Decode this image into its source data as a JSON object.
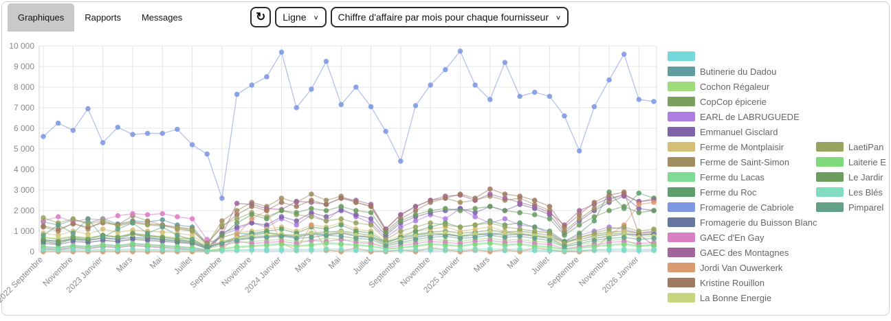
{
  "tabs": [
    {
      "label": "Graphiques",
      "active": true
    },
    {
      "label": "Rapports",
      "active": false
    },
    {
      "label": "Messages",
      "active": false
    }
  ],
  "toolbar": {
    "refresh_icon": "↻",
    "chart_type_select": {
      "value": "Ligne"
    },
    "dataset_select": {
      "value": "Chiffre d'affaire par mois pour chaque fournisseur"
    }
  },
  "chart_data": {
    "type": "line",
    "title": "Chiffre d'affaire par mois pour chaque fournisseur",
    "n_points": 42,
    "x_tick_every": 2,
    "x_tick_labels": [
      "2022 Septembre",
      "Novembre",
      "2023 Janvier",
      "Mars",
      "Mai",
      "Juillet",
      "Septembre",
      "Novembre",
      "2024 Janvier",
      "Mars",
      "Mai",
      "Juillet",
      "Septembre",
      "Novembre",
      "2025 Janvier",
      "Mars",
      "Mai",
      "Juillet",
      "Septembre",
      "Novembre",
      "2026 Janvier"
    ],
    "ylim": [
      0,
      10000
    ],
    "y_tick_step": 1000,
    "y_tick_labels": [
      "0",
      "1 000",
      "2 000",
      "3 000",
      "4 000",
      "5 000",
      "6 000",
      "7 000",
      "8 000",
      "9 000",
      "10 000"
    ],
    "grid": true,
    "legend_position": "right",
    "series": [
      {
        "name": "",
        "color": "#76d7dd",
        "legend_column": 1,
        "values": [
          60,
          50,
          70,
          40,
          60,
          50,
          60,
          70,
          50,
          60,
          40,
          30,
          50,
          60,
          70,
          50,
          60,
          50,
          70,
          60,
          50,
          60,
          40,
          30,
          60,
          50,
          70,
          60,
          50,
          60,
          70,
          50,
          60,
          50,
          40,
          30,
          50,
          60,
          70,
          60,
          50,
          60
        ]
      },
      {
        "name": "Butinerie du Dadou",
        "color": "#5f9da0",
        "legend_column": 1,
        "values": [
          1450,
          1300,
          1550,
          1400,
          1600,
          1350,
          1500,
          1450,
          1550,
          1300,
          1200,
          400,
          700,
          900,
          850,
          950,
          800,
          750,
          900,
          850,
          950,
          800,
          700,
          500,
          650,
          800,
          900,
          850,
          750,
          900,
          800,
          950,
          850,
          800,
          700,
          500,
          600,
          750,
          850,
          900,
          800,
          850
        ]
      },
      {
        "name": "Cochon Régaleur",
        "color": "#9fdb7d",
        "legend_column": 1,
        "values": [
          500,
          400,
          600,
          450,
          550,
          500,
          650,
          600,
          550,
          450,
          400,
          150,
          300,
          450,
          500,
          550,
          600,
          500,
          550,
          650,
          600,
          550,
          450,
          250,
          400,
          500,
          600,
          550,
          500,
          600,
          650,
          550,
          600,
          500,
          450,
          250,
          350,
          450,
          550,
          600,
          300,
          350
        ]
      },
      {
        "name": "CopCop épicerie",
        "color": "#7ba05e",
        "legend_column": 1,
        "values": [
          700,
          600,
          750,
          650,
          800,
          700,
          850,
          750,
          700,
          650,
          600,
          200,
          500,
          700,
          800,
          900,
          850,
          800,
          900,
          950,
          1000,
          900,
          800,
          400,
          700,
          850,
          950,
          1000,
          900,
          950,
          1050,
          950,
          1000,
          900,
          800,
          450,
          700,
          850,
          950,
          1000,
          900,
          950
        ]
      },
      {
        "name": "EARL de LABRUGUEDE",
        "color": "#ae7de0",
        "legend_column": 1,
        "values": [
          250,
          200,
          300,
          250,
          350,
          300,
          400,
          350,
          300,
          250,
          200,
          100,
          800,
          1100,
          1400,
          1200,
          1600,
          1300,
          1800,
          1500,
          2100,
          1700,
          1400,
          700,
          1200,
          1500,
          1800,
          1600,
          2100,
          1700,
          1400,
          1600,
          1300,
          1200,
          900,
          500,
          800,
          1000,
          1200,
          1100,
          900,
          1000
        ]
      },
      {
        "name": "Emmanuel Gisclard",
        "color": "#7f64aa",
        "legend_column": 1,
        "values": [
          400,
          350,
          500,
          450,
          550,
          500,
          600,
          550,
          500,
          450,
          400,
          150,
          900,
          1200,
          1400,
          1300,
          1700,
          1500,
          1900,
          1700,
          2000,
          1800,
          1600,
          800,
          1400,
          1700,
          1900,
          2000,
          2100,
          1900,
          2200,
          2000,
          2300,
          2100,
          1800,
          900,
          1500,
          2000,
          2400,
          2700,
          2100,
          2000
        ]
      },
      {
        "name": "Ferme de Montplaisir",
        "color": "#d5bf78",
        "legend_column": 1,
        "values": [
          900,
          800,
          1000,
          850,
          1100,
          950,
          1050,
          1000,
          950,
          900,
          800,
          300,
          700,
          900,
          1000,
          1100,
          1200,
          1000,
          1300,
          1200,
          1400,
          1100,
          1000,
          500,
          800,
          1000,
          1100,
          1200,
          1000,
          1100,
          1200,
          1000,
          900,
          800,
          700,
          400,
          600,
          800,
          900,
          1000,
          850,
          900
        ]
      },
      {
        "name": "Ferme de Saint-Simon",
        "color": "#a28e5e",
        "legend_column": 1,
        "values": [
          1200,
          1000,
          1400,
          1100,
          1500,
          1300,
          1750,
          1500,
          1300,
          1100,
          1000,
          350,
          1500,
          2000,
          2400,
          2200,
          2600,
          2400,
          2800,
          2500,
          2700,
          2400,
          2200,
          1100,
          1800,
          2200,
          2500,
          2600,
          2400,
          2500,
          2700,
          2500,
          2600,
          2300,
          2000,
          1000,
          1600,
          2100,
          2500,
          2800,
          2400,
          2600
        ]
      },
      {
        "name": "Ferme du Lacas",
        "color": "#7edc95",
        "legend_column": 1,
        "values": [
          250,
          200,
          300,
          250,
          350,
          300,
          400,
          350,
          300,
          250,
          200,
          80,
          150,
          250,
          300,
          350,
          400,
          300,
          350,
          450,
          400,
          350,
          300,
          150,
          200,
          300,
          400,
          350,
          300,
          400,
          450,
          350,
          400,
          300,
          250,
          120,
          200,
          300,
          350,
          400,
          300,
          350
        ]
      },
      {
        "name": "Ferme du Roc",
        "color": "#5f9e6c",
        "legend_column": 1,
        "values": [
          500,
          400,
          650,
          550,
          700,
          600,
          850,
          700,
          600,
          500,
          450,
          150,
          400,
          700,
          900,
          1000,
          1100,
          900,
          1200,
          1100,
          1300,
          1000,
          900,
          450,
          700,
          1000,
          1200,
          1400,
          1200,
          1300,
          1500,
          1300,
          1400,
          1200,
          1000,
          500,
          900,
          1500,
          2900,
          2100,
          2850,
          2600
        ]
      },
      {
        "name": "Fromagerie de Cabriole",
        "color": "#7d97e2",
        "legend_column": 1,
        "values": [
          5600,
          6250,
          5900,
          6950,
          5300,
          6050,
          5700,
          5750,
          5750,
          5950,
          5200,
          4750,
          2600,
          7650,
          8100,
          8500,
          9700,
          7000,
          7900,
          9250,
          7150,
          8000,
          7050,
          5850,
          4400,
          7100,
          8100,
          8850,
          9750,
          8100,
          7400,
          9200,
          7550,
          7750,
          7550,
          6600,
          4900,
          7050,
          8350,
          9600,
          7400,
          7300
        ]
      },
      {
        "name": "Fromagerie du Buisson Blanc",
        "color": "#65779e",
        "legend_column": 1,
        "values": [
          550,
          500,
          600,
          550,
          650,
          600,
          700,
          650,
          600,
          550,
          500,
          200,
          450,
          600,
          700,
          750,
          800,
          700,
          850,
          800,
          900,
          750,
          700,
          350,
          550,
          700,
          800,
          850,
          750,
          800,
          900,
          800,
          850,
          750,
          650,
          300,
          500,
          650,
          750,
          850,
          800,
          850
        ]
      },
      {
        "name": "GAEC d'En Gay",
        "color": "#d97fc4",
        "legend_column": 1,
        "values": [
          1500,
          1700,
          1450,
          1600,
          1550,
          1750,
          1850,
          1800,
          1850,
          1700,
          1600,
          600,
          300,
          500,
          400,
          450,
          500,
          400,
          550,
          500,
          600,
          450,
          400,
          200,
          300,
          400,
          500,
          450,
          400,
          500,
          550,
          450,
          500,
          400,
          350,
          150,
          250,
          350,
          450,
          500,
          400,
          450
        ]
      },
      {
        "name": "GAEC des Montagnes",
        "color": "#a0659a",
        "legend_column": 1,
        "values": [
          150,
          100,
          200,
          150,
          250,
          200,
          300,
          250,
          200,
          150,
          100,
          50,
          800,
          2350,
          2300,
          2100,
          2050,
          2450,
          2400,
          2300,
          2600,
          2500,
          2300,
          1100,
          1800,
          2200,
          2500,
          2700,
          2750,
          2500,
          2800,
          2600,
          2400,
          2200,
          1900,
          1300,
          2000,
          2300,
          2600,
          2750,
          2450,
          2500
        ]
      },
      {
        "name": "Jordi Van Ouwerkerk",
        "color": "#db9a70",
        "legend_column": 1,
        "values": [
          0,
          0,
          0,
          0,
          0,
          0,
          0,
          0,
          0,
          0,
          0,
          0,
          100,
          800,
          1600,
          2000,
          400,
          100,
          1300,
          100,
          0,
          200,
          0,
          0,
          100,
          0,
          200,
          100,
          0,
          100,
          0,
          100,
          0,
          200,
          100,
          0,
          0,
          100,
          800,
          1300,
          2300,
          2400
        ]
      },
      {
        "name": "Kristine Rouillon",
        "color": "#a07962",
        "legend_column": 1,
        "values": [
          1250,
          1100,
          1350,
          1200,
          1400,
          1300,
          1450,
          1350,
          1300,
          1200,
          1100,
          400,
          1200,
          1800,
          2200,
          2000,
          2400,
          2200,
          2500,
          2300,
          2600,
          2400,
          2200,
          1000,
          1600,
          2000,
          2400,
          2600,
          2800,
          2600,
          3050,
          2800,
          2700,
          2500,
          2200,
          1200,
          1800,
          2400,
          2750,
          2900,
          850,
          300
        ]
      },
      {
        "name": "La Bonne Energie",
        "color": "#c6d67e",
        "legend_column": 1,
        "values": [
          700,
          650,
          750,
          700,
          800,
          750,
          850,
          800,
          750,
          700,
          650,
          250,
          500,
          650,
          750,
          800,
          850,
          750,
          900,
          850,
          950,
          800,
          750,
          350,
          600,
          750,
          850,
          900,
          800,
          850,
          950,
          850,
          900,
          800,
          700,
          300,
          500,
          650,
          800,
          850,
          700,
          750
        ]
      },
      {
        "name": "LaetiPan",
        "color": "#97a45f",
        "legend_column": 2,
        "values": [
          1650,
          1400,
          1600,
          1350,
          1500,
          1250,
          1400,
          1300,
          1250,
          1150,
          1050,
          350,
          1300,
          1600,
          1900,
          1700,
          2000,
          1800,
          1700,
          1500,
          1600,
          1400,
          1300,
          600,
          1000,
          1200,
          1400,
          1300,
          1200,
          1300,
          1400,
          1200,
          1100,
          1000,
          900,
          400,
          700,
          900,
          1100,
          1200,
          1000,
          1100
        ]
      },
      {
        "name": "Laiterie E",
        "color": "#80da7b",
        "legend_column": 2,
        "values": [
          200,
          150,
          250,
          200,
          300,
          250,
          350,
          300,
          250,
          200,
          150,
          60,
          120,
          200,
          250,
          300,
          350,
          250,
          300,
          400,
          350,
          300,
          250,
          120,
          180,
          250,
          350,
          300,
          250,
          350,
          400,
          300,
          350,
          250,
          200,
          100,
          150,
          250,
          300,
          350,
          250,
          300
        ]
      },
      {
        "name": "Le Jardir",
        "color": "#6b9c60",
        "legend_column": 2,
        "values": [
          600,
          500,
          700,
          600,
          800,
          700,
          900,
          800,
          700,
          600,
          500,
          200,
          800,
          1400,
          1800,
          1600,
          2000,
          1900,
          2100,
          2000,
          2200,
          2000,
          1900,
          900,
          1500,
          1800,
          2000,
          2100,
          2000,
          2100,
          2200,
          2000,
          1900,
          1800,
          1600,
          800,
          1300,
          1700,
          2000,
          2200,
          1900,
          2000
        ]
      },
      {
        "name": "Les Blés",
        "color": "#82dcc0",
        "legend_column": 2,
        "values": [
          100,
          80,
          120,
          90,
          110,
          100,
          130,
          110,
          100,
          90,
          80,
          30,
          60,
          90,
          110,
          120,
          130,
          110,
          120,
          140,
          120,
          110,
          100,
          50,
          80,
          110,
          130,
          120,
          110,
          130,
          140,
          120,
          130,
          110,
          90,
          40,
          70,
          100,
          120,
          130,
          110,
          120
        ]
      },
      {
        "name": "Pimparel",
        "color": "#62a088",
        "legend_column": 2,
        "values": [
          800,
          1300,
          900,
          1600,
          700,
          1100,
          1400,
          900,
          1200,
          800,
          600,
          250,
          400,
          550,
          650,
          700,
          750,
          650,
          700,
          800,
          750,
          650,
          600,
          300,
          450,
          600,
          700,
          750,
          650,
          700,
          800,
          700,
          750,
          650,
          550,
          250,
          400,
          550,
          650,
          700,
          600,
          650
        ]
      }
    ]
  }
}
